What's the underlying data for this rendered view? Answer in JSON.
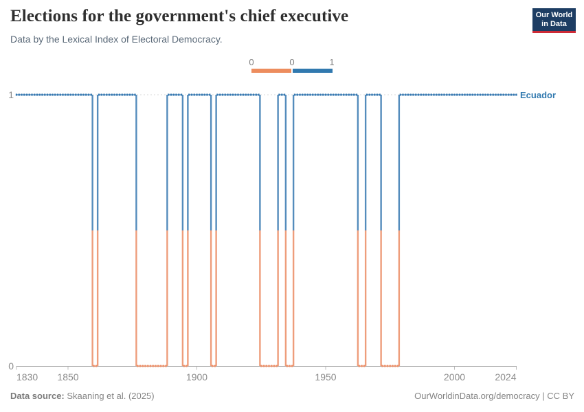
{
  "header": {
    "title": "Elections for the government's chief executive",
    "subtitle": "Data by the Lexical Index of Electoral Democracy.",
    "logo": {
      "line1": "Our World",
      "line2": "in Data"
    }
  },
  "legend": {
    "labels": [
      "0",
      "0",
      "1"
    ],
    "color_0": "#ED8D5E",
    "color_1": "#3179AF"
  },
  "chart_data": {
    "type": "line",
    "title": "Elections for the government's chief executive",
    "entity": "Ecuador",
    "xlabel": "",
    "ylabel": "",
    "x_range": [
      1830,
      2024
    ],
    "y_range": [
      0,
      1
    ],
    "x_ticks": [
      1830,
      1850,
      1900,
      1950,
      2000,
      2024
    ],
    "y_axis_labels": [
      "0",
      "1"
    ],
    "grid": "dashed line at y=1, solid axis at y=0",
    "legend_position": "top-center",
    "colors": {
      "value_0": "#EC8C64",
      "value_1": "#3779B1"
    },
    "series": [
      {
        "name": "Ecuador",
        "color": "#3179AF",
        "segments": [
          {
            "start": 1830,
            "end": 1859,
            "value": 1
          },
          {
            "start": 1860,
            "end": 1861,
            "value": 0
          },
          {
            "start": 1862,
            "end": 1876,
            "value": 1
          },
          {
            "start": 1877,
            "end": 1888,
            "value": 0
          },
          {
            "start": 1889,
            "end": 1894,
            "value": 1
          },
          {
            "start": 1895,
            "end": 1896,
            "value": 0
          },
          {
            "start": 1897,
            "end": 1905,
            "value": 1
          },
          {
            "start": 1906,
            "end": 1907,
            "value": 0
          },
          {
            "start": 1908,
            "end": 1924,
            "value": 1
          },
          {
            "start": 1925,
            "end": 1931,
            "value": 0
          },
          {
            "start": 1932,
            "end": 1934,
            "value": 1
          },
          {
            "start": 1935,
            "end": 1937,
            "value": 0
          },
          {
            "start": 1938,
            "end": 1962,
            "value": 1
          },
          {
            "start": 1963,
            "end": 1965,
            "value": 0
          },
          {
            "start": 1966,
            "end": 1971,
            "value": 1
          },
          {
            "start": 1972,
            "end": 1978,
            "value": 0
          },
          {
            "start": 1979,
            "end": 2024,
            "value": 1
          }
        ]
      }
    ]
  },
  "footer": {
    "source_label": "Data source:",
    "source_value": " Skaaning et al. (2025)",
    "right": "OurWorldinData.org/democracy | CC BY"
  }
}
